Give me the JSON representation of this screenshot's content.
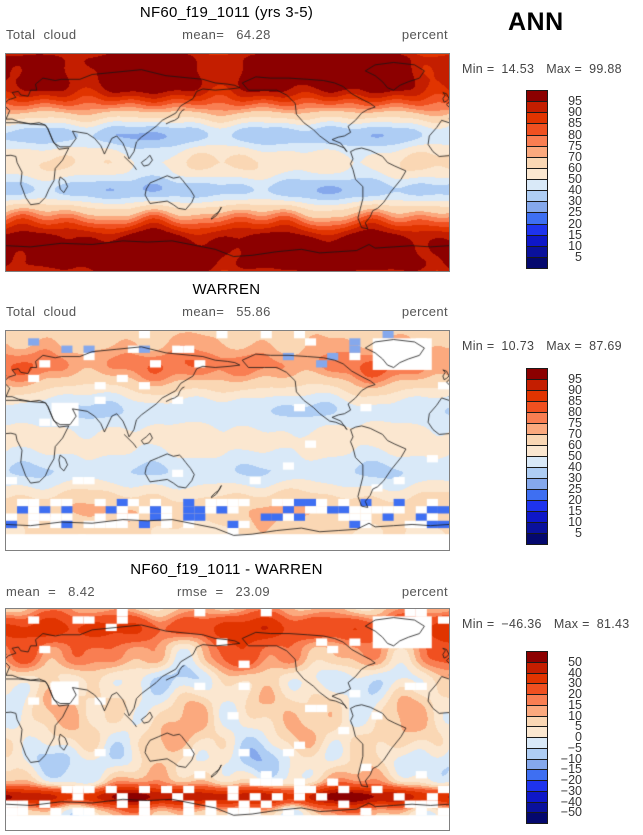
{
  "page": {
    "season_label": "ANN"
  },
  "palette": {
    "colors_low_to_high": [
      "#04086E",
      "#0A119C",
      "#0E17C8",
      "#1E33EE",
      "#3E6FF2",
      "#85A8EC",
      "#AECDF4",
      "#D9E9F8",
      "#FBE7D0",
      "#FAD7B4",
      "#FBA97E",
      "#F97E52",
      "#F05020",
      "#E13400",
      "#C41E00",
      "#8C0000"
    ],
    "missing_color": "#FFFFFF",
    "frame_color": "#808080"
  },
  "panels": [
    {
      "title": "NF60_f19_1011 (yrs 3-5)",
      "var_label": "Total cloud",
      "stat1_label": "mean=",
      "stat1": "64.28",
      "units": "percent",
      "min_label": "Min =",
      "min": "14.53",
      "max_label": "Max =",
      "max": "99.88",
      "levels_display": [
        "95",
        "90",
        "85",
        "80",
        "75",
        "70",
        "60",
        "50",
        "40",
        "30",
        "25",
        "20",
        "15",
        "10",
        "5"
      ]
    },
    {
      "title": "WARREN",
      "var_label": "Total cloud",
      "stat1_label": "mean=",
      "stat1": "55.86",
      "units": "percent",
      "min_label": "Min =",
      "min": "10.73",
      "max_label": "Max =",
      "max": "87.69",
      "levels_display": [
        "95",
        "90",
        "85",
        "80",
        "75",
        "70",
        "60",
        "50",
        "40",
        "30",
        "25",
        "20",
        "15",
        "10",
        "5"
      ]
    },
    {
      "title": "NF60_f19_1011 - WARREN",
      "stat1_label": "mean =",
      "stat1": "8.42",
      "stat2_label": "rmse =",
      "stat2": "23.09",
      "units": "percent",
      "min_label": "Min =",
      "min": "−46.36",
      "max_label": "Max =",
      "max": "81.43",
      "levels_display": [
        "50",
        "40",
        "30",
        "20",
        "15",
        "10",
        "5",
        "0",
        "−5",
        "−10",
        "−15",
        "−20",
        "−30",
        "−40",
        "−50"
      ]
    }
  ],
  "chart_data": [
    {
      "type": "heatmap",
      "subtype": "filled-contour global map (equirectangular, lon 0-360E, lat 90S-90N)",
      "title": "NF60_f19_1011 (yrs 3-5)",
      "variable": "Total cloud",
      "units": "percent",
      "season": "ANN",
      "mean": 64.28,
      "min": 14.53,
      "max": 99.88,
      "levels": [
        5,
        10,
        15,
        20,
        25,
        30,
        40,
        50,
        60,
        70,
        75,
        80,
        85,
        90,
        95
      ],
      "colormap": "16-class blue to cream to dark red",
      "legend_position": "right",
      "pattern": "dark red high cloud over Arctic, midlatitude storm tracks, Southern Ocean and Antarctica; blue minima over subtropics (N Africa/Middle East, SH subtropics); cream tropics"
    },
    {
      "type": "heatmap",
      "subtype": "filled-contour global map (equirectangular, lon 0-360E, lat 90S-90N)",
      "title": "WARREN",
      "variable": "Total cloud",
      "units": "percent",
      "season": "ANN",
      "mean": 55.86,
      "min": 10.73,
      "max": 87.69,
      "levels": [
        5,
        10,
        15,
        20,
        25,
        30,
        40,
        50,
        60,
        70,
        75,
        80,
        85,
        90,
        95
      ],
      "colormap": "16-class blue to cream to dark red",
      "legend_position": "right",
      "pattern": "muted field; red N Pacific/N Atlantic and Arctic, light blue subtropics; white cells are missing observations (Greenland, Arabia, Southern Ocean, Antarctica)"
    },
    {
      "type": "heatmap",
      "subtype": "filled-contour global difference map (equirectangular, lon 0-360E, lat 90S-90N)",
      "title": "NF60_f19_1011 - WARREN",
      "variable": "Total cloud difference (model minus obs)",
      "units": "percent",
      "season": "ANN",
      "mean": 8.42,
      "rmse": 23.09,
      "min": -46.36,
      "max": 81.43,
      "levels": [
        -50,
        -40,
        -30,
        -20,
        -15,
        -10,
        -5,
        0,
        5,
        10,
        15,
        20,
        30,
        40,
        50
      ],
      "colormap": "16-class blue to cream to dark red",
      "legend_position": "right",
      "pattern": "strong positive (dark red) band over Southern Ocean and Arctic/high northern latitudes; alternating positive and negative blobs in midlatitudes and tropics; white cells are missing data"
    }
  ]
}
